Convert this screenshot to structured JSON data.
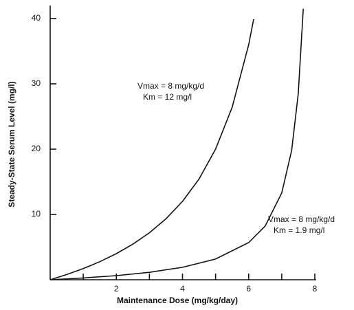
{
  "chart_data": {
    "type": "line",
    "x_label": "Maintenance Dose (mg/kg/day)",
    "y_label": "Steady-State Serum Level (mg/l)",
    "xlim": [
      0,
      8
    ],
    "ylim": [
      0,
      42
    ],
    "xticks": [
      2,
      4,
      6,
      8
    ],
    "xminor_ticks": [
      1,
      3,
      5,
      7
    ],
    "yticks": [
      10,
      20,
      30,
      40
    ],
    "series": [
      {
        "color": "#111111",
        "x": [
          0,
          0.5,
          1,
          1.5,
          2,
          2.5,
          3,
          3.5,
          4,
          4.5,
          5,
          5.5,
          6,
          6.15
        ],
        "values": [
          0,
          0.8,
          1.71,
          2.77,
          4,
          5.45,
          7.2,
          9.33,
          12,
          15.43,
          20,
          26.4,
          36,
          39.9
        ],
        "annotation": [
          "Vmax = 8 mg/kg/d",
          "Km = 12 mg/l"
        ]
      },
      {
        "color": "#111111",
        "x": [
          0,
          1,
          2,
          3,
          4,
          5,
          6,
          6.5,
          7,
          7.3,
          7.5,
          7.65
        ],
        "values": [
          0,
          0.27,
          0.63,
          1.14,
          1.9,
          3.17,
          5.7,
          8.23,
          13.3,
          19.8,
          28.5,
          41.5
        ],
        "annotation": [
          "Vmax = 8 mg/kg/d",
          "Km = 1.9 mg/l"
        ]
      }
    ]
  }
}
